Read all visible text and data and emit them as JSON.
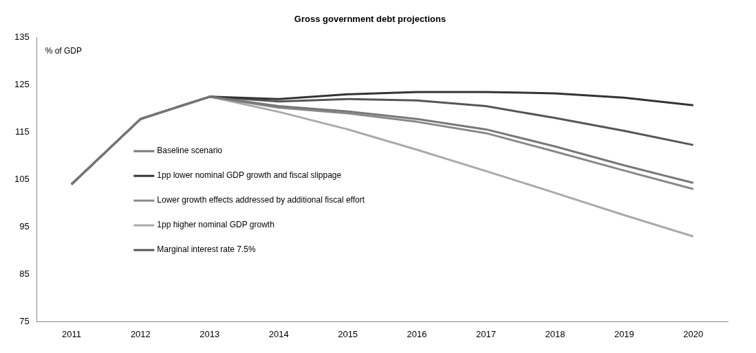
{
  "chart_data": {
    "type": "line",
    "title": "Gross government debt projections",
    "ylabel": "% of GDP",
    "categories": [
      "2011",
      "2012",
      "2013",
      "2014",
      "2015",
      "2016",
      "2017",
      "2018",
      "2019",
      "2020"
    ],
    "series": [
      {
        "name": "Baseline scenario",
        "color": "#777777",
        "values": [
          104,
          117.8,
          122.5,
          120.5,
          119.4,
          117.8,
          115.6,
          112,
          108,
          104.3
        ]
      },
      {
        "name": "1pp lower nominal GDP growth and fiscal slippage",
        "color": "#333333",
        "values": [
          104,
          117.8,
          122.5,
          122,
          123,
          123.5,
          123.5,
          123.2,
          122.3,
          120.7
        ]
      },
      {
        "name": "Lower growth effects addressed by additional fiscal effort",
        "color": "#888888",
        "values": [
          104,
          117.8,
          122.5,
          120.2,
          119,
          117.2,
          114.8,
          110.9,
          106.9,
          103
        ]
      },
      {
        "name": "1pp higher nominal GDP growth",
        "color": "#aaaaaa",
        "values": [
          104,
          117.8,
          122.5,
          119.3,
          115.6,
          111.3,
          106.8,
          102.2,
          97.5,
          93
        ]
      },
      {
        "name": "Marginal interest rate 7.5%",
        "color": "#555555",
        "values": [
          104,
          117.8,
          122.5,
          121.5,
          122,
          121.7,
          120.5,
          118,
          115.3,
          112.3
        ]
      }
    ],
    "ylim": [
      75,
      135
    ],
    "yticks": [
      75,
      85,
      95,
      105,
      115,
      125,
      135
    ],
    "grid": false,
    "legend": "left",
    "marker": "none",
    "line_style": "solid"
  }
}
